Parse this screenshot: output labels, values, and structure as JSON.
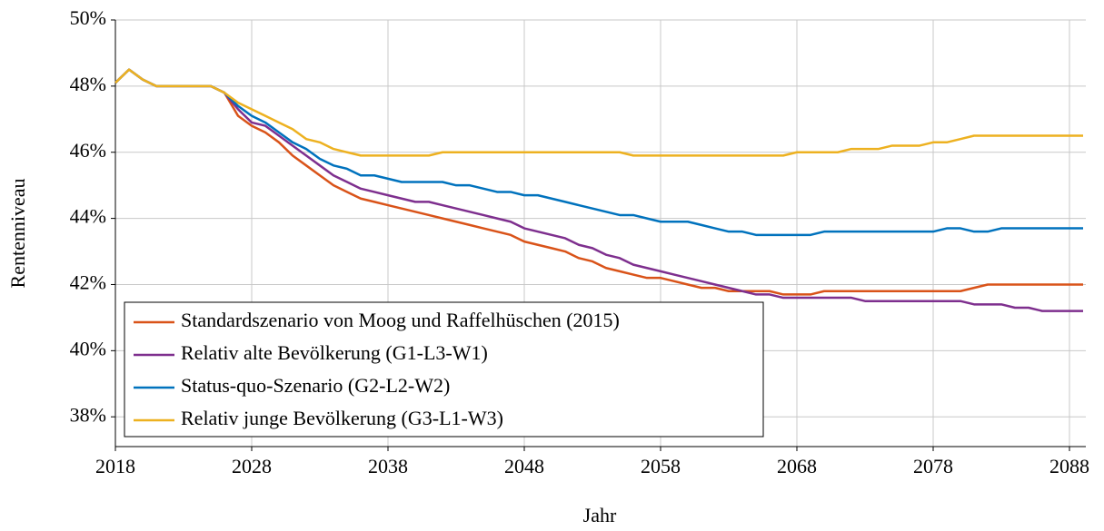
{
  "chart_data": {
    "type": "line",
    "x_label": "Jahr",
    "y_label": "Rentenniveau",
    "x": [
      2018,
      2019,
      2020,
      2021,
      2022,
      2023,
      2024,
      2025,
      2026,
      2027,
      2028,
      2029,
      2030,
      2031,
      2032,
      2033,
      2034,
      2035,
      2036,
      2037,
      2038,
      2039,
      2040,
      2041,
      2042,
      2043,
      2044,
      2045,
      2046,
      2047,
      2048,
      2049,
      2050,
      2051,
      2052,
      2053,
      2054,
      2055,
      2056,
      2057,
      2058,
      2059,
      2060,
      2061,
      2062,
      2063,
      2064,
      2065,
      2066,
      2067,
      2068,
      2069,
      2070,
      2071,
      2072,
      2073,
      2074,
      2075,
      2076,
      2077,
      2078,
      2079,
      2080,
      2081,
      2082,
      2083,
      2084,
      2085,
      2086,
      2087,
      2088,
      2089
    ],
    "series": [
      {
        "name": "Standardszenario von Moog und Raffelhüschen (2015)",
        "color": "#d95319",
        "values": [
          48.1,
          48.5,
          48.2,
          48.0,
          48.0,
          48.0,
          48.0,
          48.0,
          47.8,
          47.1,
          46.8,
          46.6,
          46.3,
          45.9,
          45.6,
          45.3,
          45.0,
          44.8,
          44.6,
          44.5,
          44.4,
          44.3,
          44.2,
          44.1,
          44.0,
          43.9,
          43.8,
          43.7,
          43.6,
          43.5,
          43.3,
          43.2,
          43.1,
          43.0,
          42.8,
          42.7,
          42.5,
          42.4,
          42.3,
          42.2,
          42.2,
          42.1,
          42.0,
          41.9,
          41.9,
          41.8,
          41.8,
          41.8,
          41.8,
          41.7,
          41.7,
          41.7,
          41.8,
          41.8,
          41.8,
          41.8,
          41.8,
          41.8,
          41.8,
          41.8,
          41.8,
          41.8,
          41.8,
          41.9,
          42.0,
          42.0,
          42.0,
          42.0,
          42.0,
          42.0,
          42.0,
          42.0
        ]
      },
      {
        "name": "Relativ alte Bevölkerung (G1-L3-W1)",
        "color": "#7e2f8e",
        "values": [
          48.1,
          48.5,
          48.2,
          48.0,
          48.0,
          48.0,
          48.0,
          48.0,
          47.8,
          47.3,
          46.9,
          46.8,
          46.5,
          46.2,
          45.9,
          45.6,
          45.3,
          45.1,
          44.9,
          44.8,
          44.7,
          44.6,
          44.5,
          44.5,
          44.4,
          44.3,
          44.2,
          44.1,
          44.0,
          43.9,
          43.7,
          43.6,
          43.5,
          43.4,
          43.2,
          43.1,
          42.9,
          42.8,
          42.6,
          42.5,
          42.4,
          42.3,
          42.2,
          42.1,
          42.0,
          41.9,
          41.8,
          41.7,
          41.7,
          41.6,
          41.6,
          41.6,
          41.6,
          41.6,
          41.6,
          41.5,
          41.5,
          41.5,
          41.5,
          41.5,
          41.5,
          41.5,
          41.5,
          41.4,
          41.4,
          41.4,
          41.3,
          41.3,
          41.2,
          41.2,
          41.2,
          41.2
        ]
      },
      {
        "name": "Status-quo-Szenario (G2-L2-W2)",
        "color": "#0072bd",
        "values": [
          48.1,
          48.5,
          48.2,
          48.0,
          48.0,
          48.0,
          48.0,
          48.0,
          47.8,
          47.4,
          47.1,
          46.9,
          46.6,
          46.3,
          46.1,
          45.8,
          45.6,
          45.5,
          45.3,
          45.3,
          45.2,
          45.1,
          45.1,
          45.1,
          45.1,
          45.0,
          45.0,
          44.9,
          44.8,
          44.8,
          44.7,
          44.7,
          44.6,
          44.5,
          44.4,
          44.3,
          44.2,
          44.1,
          44.1,
          44.0,
          43.9,
          43.9,
          43.9,
          43.8,
          43.7,
          43.6,
          43.6,
          43.5,
          43.5,
          43.5,
          43.5,
          43.5,
          43.6,
          43.6,
          43.6,
          43.6,
          43.6,
          43.6,
          43.6,
          43.6,
          43.6,
          43.7,
          43.7,
          43.6,
          43.6,
          43.7,
          43.7,
          43.7,
          43.7,
          43.7,
          43.7,
          43.7
        ]
      },
      {
        "name": "Relativ junge Bevölkerung (G3-L1-W3)",
        "color": "#edb120",
        "values": [
          48.1,
          48.5,
          48.2,
          48.0,
          48.0,
          48.0,
          48.0,
          48.0,
          47.8,
          47.5,
          47.3,
          47.1,
          46.9,
          46.7,
          46.4,
          46.3,
          46.1,
          46.0,
          45.9,
          45.9,
          45.9,
          45.9,
          45.9,
          45.9,
          46.0,
          46.0,
          46.0,
          46.0,
          46.0,
          46.0,
          46.0,
          46.0,
          46.0,
          46.0,
          46.0,
          46.0,
          46.0,
          46.0,
          45.9,
          45.9,
          45.9,
          45.9,
          45.9,
          45.9,
          45.9,
          45.9,
          45.9,
          45.9,
          45.9,
          45.9,
          46.0,
          46.0,
          46.0,
          46.0,
          46.1,
          46.1,
          46.1,
          46.2,
          46.2,
          46.2,
          46.3,
          46.3,
          46.4,
          46.5,
          46.5,
          46.5,
          46.5,
          46.5,
          46.5,
          46.5,
          46.5,
          46.5
        ]
      }
    ],
    "xlim": [
      2018,
      2089.2
    ],
    "xticks": [
      2018,
      2028,
      2038,
      2048,
      2058,
      2068,
      2078,
      2088
    ],
    "ylim": [
      37.1,
      50
    ],
    "yticks": [
      {
        "value": 38,
        "label": "38%"
      },
      {
        "value": 40,
        "label": "40%"
      },
      {
        "value": 42,
        "label": "42%"
      },
      {
        "value": 44,
        "label": "44%"
      },
      {
        "value": 46,
        "label": "46%"
      },
      {
        "value": 48,
        "label": "48%"
      },
      {
        "value": 50,
        "label": "50%"
      }
    ],
    "grid": true,
    "legend": "lower left"
  }
}
